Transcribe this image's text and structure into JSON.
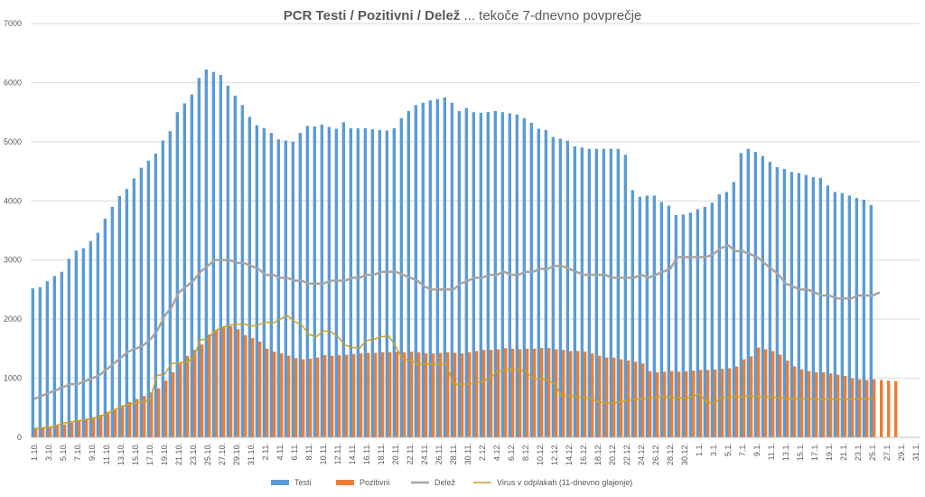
{
  "chart_data": {
    "type": "bar",
    "title_bold": "PCR Testi / Pozitivni / Delež",
    "title_rest": " ... tekoče 7-dnevno povprečje",
    "ylim": [
      0,
      7000
    ],
    "yticks": [
      "0",
      "1000",
      "2000",
      "3000",
      "4000",
      "5000",
      "6000",
      "7000"
    ],
    "num_days": 123,
    "x_tick_labels": [
      "1.10.",
      "3.10.",
      "5.10.",
      "7.10.",
      "9.10.",
      "11.10.",
      "13.10.",
      "15.10.",
      "17.10.",
      "19.10.",
      "21.10.",
      "23.10.",
      "25.10.",
      "27.10.",
      "29.10.",
      "31.10.",
      "2.11.",
      "4.11.",
      "6.11.",
      "8.11.",
      "10.11.",
      "12.11.",
      "14.11.",
      "16.11.",
      "18.11.",
      "20.11.",
      "22.11.",
      "24.11.",
      "26.11.",
      "28.11.",
      "30.11.",
      "2.12.",
      "4.12.",
      "6.12.",
      "8.12.",
      "10.12.",
      "12.12.",
      "14.12.",
      "16.12.",
      "18.12.",
      "20.12.",
      "22.12.",
      "24.12.",
      "26.12.",
      "28.12.",
      "30.12.",
      "1.1.",
      "3.1.",
      "5.1.",
      "7.1.",
      "9.1.",
      "11.1.",
      "13.1.",
      "15.1.",
      "17.1.",
      "19.1.",
      "21.1.",
      "23.1.",
      "25.1.",
      "27.1.",
      "29.1.",
      "31.1."
    ],
    "series": [
      {
        "name": "Testi",
        "color": "#5b9bd5",
        "type": "bar",
        "values": [
          2520,
          2540,
          2640,
          2730,
          2800,
          3020,
          3160,
          3200,
          3320,
          3460,
          3700,
          3900,
          4080,
          4200,
          4380,
          4560,
          4680,
          4800,
          5020,
          5180,
          5500,
          5650,
          5800,
          6080,
          6220,
          6180,
          6130,
          5950,
          5780,
          5620,
          5420,
          5280,
          5230,
          5150,
          5040,
          5020,
          5000,
          5150,
          5270,
          5260,
          5290,
          5250,
          5220,
          5330,
          5230,
          5230,
          5230,
          5210,
          5200,
          5190,
          5230,
          5400,
          5520,
          5620,
          5660,
          5700,
          5720,
          5750,
          5660,
          5520,
          5570,
          5500,
          5490,
          5500,
          5520,
          5500,
          5480,
          5460,
          5400,
          5320,
          5220,
          5200,
          5080,
          5050,
          5020,
          4920,
          4900,
          4880,
          4880,
          4880,
          4880,
          4880,
          4780,
          4180,
          4070,
          4090,
          4090,
          3980,
          3920,
          3760,
          3770,
          3800,
          3860,
          3900,
          3970,
          4110,
          4150,
          4320,
          4810,
          4880,
          4830,
          4760,
          4660,
          4570,
          4540,
          4490,
          4470,
          4440,
          4400,
          4390,
          4260,
          4150,
          4130,
          4090,
          4050,
          4020,
          3930,
          null,
          null,
          null,
          null,
          null,
          null
        ]
      },
      {
        "name": "Pozitivni",
        "color": "#ed7d31",
        "type": "bar",
        "values": [
          150,
          160,
          180,
          200,
          220,
          250,
          280,
          310,
          340,
          380,
          430,
          480,
          540,
          600,
          650,
          700,
          760,
          830,
          960,
          1100,
          1250,
          1380,
          1480,
          1570,
          1740,
          1820,
          1870,
          1880,
          1830,
          1730,
          1680,
          1620,
          1500,
          1450,
          1420,
          1380,
          1340,
          1320,
          1330,
          1350,
          1390,
          1380,
          1390,
          1400,
          1410,
          1420,
          1430,
          1430,
          1440,
          1440,
          1450,
          1440,
          1450,
          1440,
          1420,
          1420,
          1430,
          1440,
          1430,
          1420,
          1440,
          1460,
          1480,
          1480,
          1490,
          1510,
          1500,
          1490,
          1500,
          1500,
          1510,
          1510,
          1490,
          1480,
          1460,
          1460,
          1450,
          1420,
          1380,
          1350,
          1350,
          1320,
          1300,
          1280,
          1250,
          1120,
          1100,
          1110,
          1120,
          1110,
          1120,
          1130,
          1140,
          1140,
          1150,
          1160,
          1170,
          1200,
          1320,
          1370,
          1520,
          1490,
          1460,
          1400,
          1300,
          1200,
          1150,
          1120,
          1100,
          1100,
          1080,
          1060,
          1040,
          1000,
          980,
          970,
          980,
          970,
          960,
          950,
          null,
          null,
          null,
          null,
          null,
          null
        ]
      },
      {
        "name": "Delež",
        "color": "#a5a5a5",
        "type": "line",
        "scale_factor": 5000,
        "values": [
          0.13,
          0.14,
          0.15,
          0.16,
          0.17,
          0.18,
          0.18,
          0.19,
          0.2,
          0.21,
          0.23,
          0.25,
          0.27,
          0.29,
          0.3,
          0.31,
          0.33,
          0.36,
          0.41,
          0.44,
          0.49,
          0.51,
          0.53,
          0.56,
          0.58,
          0.6,
          0.6,
          0.6,
          0.59,
          0.59,
          0.58,
          0.57,
          0.55,
          0.55,
          0.54,
          0.54,
          0.53,
          0.53,
          0.52,
          0.52,
          0.52,
          0.53,
          0.53,
          0.53,
          0.54,
          0.54,
          0.55,
          0.55,
          0.56,
          0.56,
          0.56,
          0.55,
          0.54,
          0.53,
          0.51,
          0.5,
          0.5,
          0.5,
          0.5,
          0.52,
          0.53,
          0.54,
          0.54,
          0.55,
          0.55,
          0.56,
          0.55,
          0.55,
          0.56,
          0.56,
          0.57,
          0.57,
          0.58,
          0.58,
          0.57,
          0.56,
          0.55,
          0.55,
          0.55,
          0.55,
          0.54,
          0.54,
          0.54,
          0.54,
          0.55,
          0.54,
          0.55,
          0.56,
          0.57,
          0.61,
          0.61,
          0.61,
          0.61,
          0.61,
          0.62,
          0.64,
          0.65,
          0.63,
          0.63,
          0.62,
          0.61,
          0.59,
          0.57,
          0.55,
          0.52,
          0.51,
          0.5,
          0.5,
          0.49,
          0.48,
          0.48,
          0.47,
          0.47,
          0.47,
          0.48,
          0.48,
          0.48,
          0.49,
          null,
          null,
          null,
          null,
          null,
          null,
          null
        ]
      },
      {
        "name": "Virus v odplakah (11-dnevno glajenje)",
        "color": "#c9a227",
        "type": "line",
        "values": [
          150,
          160,
          170,
          200,
          240,
          260,
          280,
          300,
          320,
          350,
          400,
          460,
          520,
          560,
          580,
          600,
          640,
          1050,
          1060,
          1250,
          1260,
          1270,
          1340,
          1650,
          1660,
          1800,
          1860,
          1900,
          1910,
          1920,
          1880,
          1900,
          1950,
          1930,
          2000,
          2060,
          1960,
          1900,
          1740,
          1700,
          1800,
          1790,
          1700,
          1560,
          1520,
          1510,
          1640,
          1660,
          1700,
          1720,
          1540,
          1320,
          1300,
          1250,
          1240,
          1240,
          1250,
          1240,
          900,
          900,
          900,
          920,
          950,
          1000,
          1100,
          1140,
          1150,
          1140,
          1120,
          1000,
          990,
          970,
          900,
          700,
          700,
          690,
          670,
          660,
          600,
          580,
          580,
          600,
          620,
          640,
          650,
          660,
          680,
          690,
          680,
          670,
          660,
          680,
          740,
          600,
          580,
          660,
          680,
          690,
          690,
          700,
          690,
          680,
          680,
          670,
          660,
          650,
          650,
          650,
          640,
          640,
          640,
          640,
          640,
          640,
          650,
          650,
          660,
          null,
          null,
          null,
          null,
          null,
          null,
          null
        ]
      }
    ]
  }
}
